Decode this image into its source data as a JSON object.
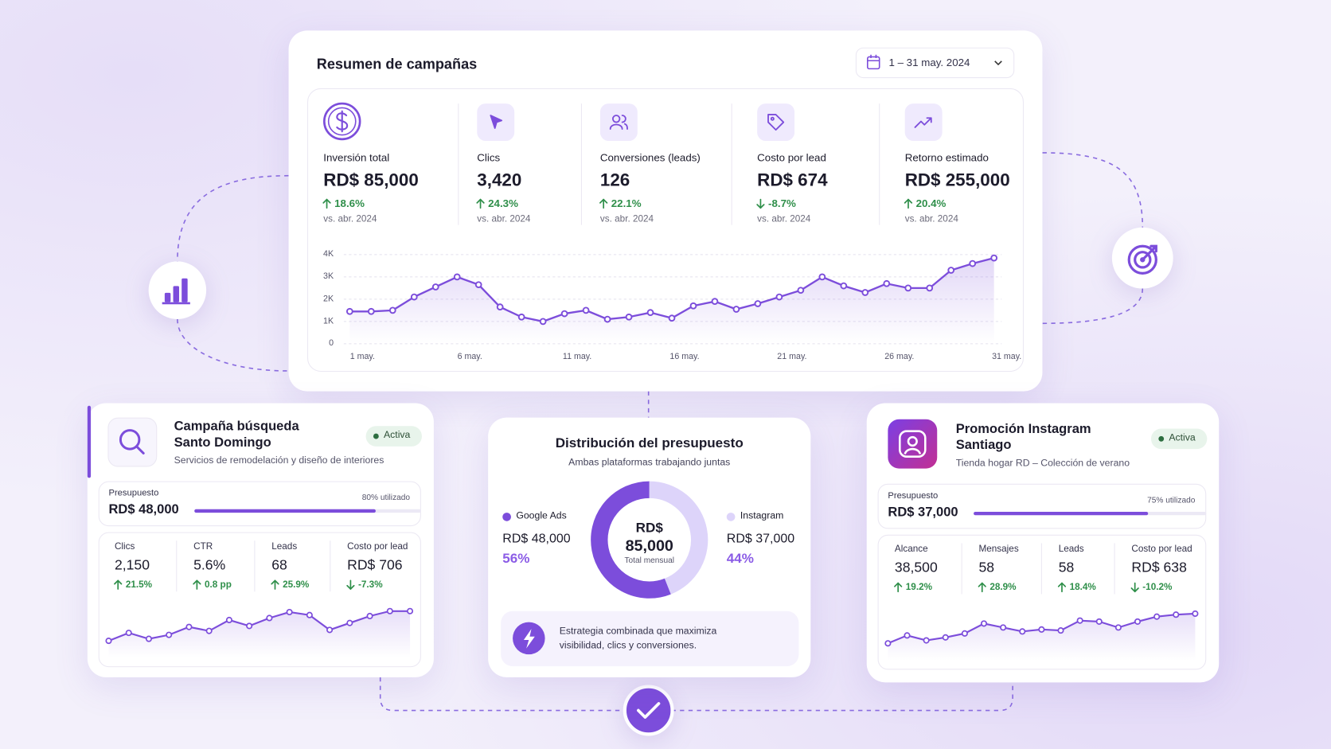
{
  "header": {
    "title": "Resumen de campañas",
    "date_range": "1 – 31 may. 2024"
  },
  "kpis": [
    {
      "label": "Inversión total",
      "value": "RD$ 85,000",
      "change": "18.6%",
      "compare": "vs. abr. 2024"
    },
    {
      "label": "Clics",
      "value": "3,420",
      "change": "24.3%",
      "compare": "vs. abr. 2024"
    },
    {
      "label": "Conversiones (leads)",
      "value": "126",
      "change": "22.1%",
      "compare": "vs. abr. 2024"
    },
    {
      "label": "Costo por lead",
      "value": "RD$ 674",
      "change": "-8.7%",
      "compare": "vs. abr. 2024"
    },
    {
      "label": "Retorno estimado",
      "value": "RD$ 255,000",
      "change": "20.4%",
      "compare": "vs. abr. 2024"
    }
  ],
  "main_chart": {
    "type": "line",
    "color": "#7c4ddb",
    "categories": [
      "1 may.",
      null,
      null,
      null,
      null,
      "6 may.",
      null,
      null,
      null,
      null,
      "11 may.",
      null,
      null,
      null,
      null,
      "16 may.",
      null,
      null,
      null,
      null,
      "21 may.",
      null,
      null,
      null,
      null,
      "26 may.",
      null,
      null,
      null,
      null,
      "31 may."
    ],
    "values": [
      1450,
      1450,
      1500,
      2100,
      2550,
      3000,
      2650,
      1650,
      1200,
      1000,
      1350,
      1500,
      1100,
      1200,
      1400,
      1150,
      1700,
      1900,
      1550,
      1800,
      2100,
      2400,
      3000,
      2600,
      2300,
      2700,
      2500,
      2500,
      3300,
      3600,
      3850
    ],
    "ylim": [
      0,
      4000
    ],
    "yticks": [
      0,
      {
        "value": 1000,
        "label": "1K"
      },
      {
        "value": 2000,
        "label": "2K"
      },
      {
        "value": 3000,
        "label": "3K"
      },
      {
        "value": 4000,
        "label": "4K"
      }
    ],
    "grid": true
  },
  "campaigns": [
    {
      "title_lines": [
        "Campaña búsqueda",
        "Santo Domingo"
      ],
      "status": "Activa",
      "subtitle": "Servicios de remodelación y diseño de interiores",
      "budget_label": "Presupuesto",
      "budget": "RD$ 48,000",
      "usage": {
        "value": 80,
        "label": "80% utilizado"
      },
      "metrics": [
        {
          "label": "Clics",
          "value": "2,150",
          "change": "21.5%"
        },
        {
          "label": "CTR",
          "value": "5.6%",
          "change": "0.8 pp"
        },
        {
          "label": "Leads",
          "value": "68",
          "change": "25.9%"
        },
        {
          "label": "Costo por lead",
          "value": "RD$ 706",
          "change": "-7.3%"
        }
      ],
      "sparkline": [
        8,
        16,
        10,
        14,
        22,
        18,
        29,
        23,
        31,
        37,
        34,
        19,
        26,
        33,
        38,
        38
      ]
    },
    {
      "title_lines": [
        "Promoción Instagram",
        "Santiago"
      ],
      "status": "Activa",
      "subtitle": "Tienda hogar RD – Colección de verano",
      "budget_label": "Presupuesto",
      "budget": "RD$ 37,000",
      "usage": {
        "value": 75,
        "label": "75% utilizado"
      },
      "metrics": [
        {
          "label": "Alcance",
          "value": "38,500",
          "change": "19.2%"
        },
        {
          "label": "Mensajes",
          "value": "58",
          "change": "28.9%"
        },
        {
          "label": "Leads",
          "value": "58",
          "change": "18.4%"
        },
        {
          "label": "Costo por lead",
          "value": "RD$ 638",
          "change": "-10.2%"
        }
      ],
      "sparkline": [
        2,
        10,
        5,
        8,
        12,
        22,
        18,
        14,
        16,
        15,
        25,
        24,
        18,
        24,
        29,
        31,
        32
      ]
    }
  ],
  "distribution": {
    "type": "pie",
    "title": "Distribución del presupuesto",
    "subtitle": "Ambas plataformas trabajando juntas",
    "center_lines": [
      "RD$",
      "85,000"
    ],
    "center_caption": "Total mensual",
    "series": [
      {
        "name": "Google Ads",
        "amount": "RD$ 48,000",
        "value": 56,
        "value_label": "56%",
        "color": "#7c4ddb"
      },
      {
        "name": "Instagram",
        "amount": "RD$ 37,000",
        "value": 44,
        "value_label": "44%",
        "color": "#ddd4fa"
      }
    ],
    "note": "Estrategia combinada que maximiza visibilidad, clics y conversiones."
  }
}
